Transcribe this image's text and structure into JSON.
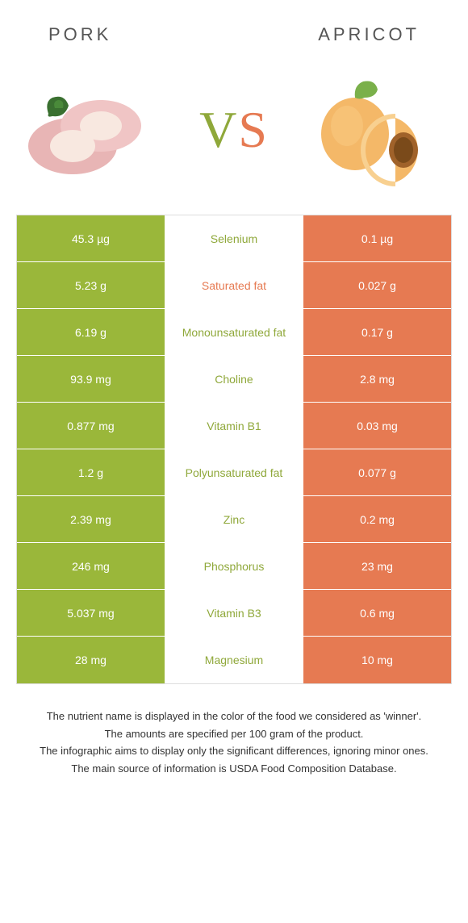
{
  "colors": {
    "left_bg": "#9ab73a",
    "right_bg": "#e67a52",
    "winner_left_text": "#8fa83a",
    "winner_right_text": "#e67a52",
    "row_border": "#ffffff"
  },
  "header": {
    "left_title": "Pork",
    "right_title": "Apricot"
  },
  "hero": {
    "vs_v": "V",
    "vs_s": "S",
    "left_alt": "pork",
    "right_alt": "apricot"
  },
  "rows": [
    {
      "nutrient": "Selenium",
      "left": "45.3 µg",
      "right": "0.1 µg",
      "winner": "left"
    },
    {
      "nutrient": "Saturated fat",
      "left": "5.23 g",
      "right": "0.027 g",
      "winner": "right"
    },
    {
      "nutrient": "Monounsaturated fat",
      "left": "6.19 g",
      "right": "0.17 g",
      "winner": "left"
    },
    {
      "nutrient": "Choline",
      "left": "93.9 mg",
      "right": "2.8 mg",
      "winner": "left"
    },
    {
      "nutrient": "Vitamin B1",
      "left": "0.877 mg",
      "right": "0.03 mg",
      "winner": "left"
    },
    {
      "nutrient": "Polyunsaturated fat",
      "left": "1.2 g",
      "right": "0.077 g",
      "winner": "left"
    },
    {
      "nutrient": "Zinc",
      "left": "2.39 mg",
      "right": "0.2 mg",
      "winner": "left"
    },
    {
      "nutrient": "Phosphorus",
      "left": "246 mg",
      "right": "23 mg",
      "winner": "left"
    },
    {
      "nutrient": "Vitamin B3",
      "left": "5.037 mg",
      "right": "0.6 mg",
      "winner": "left"
    },
    {
      "nutrient": "Magnesium",
      "left": "28 mg",
      "right": "10 mg",
      "winner": "left"
    }
  ],
  "notes": [
    "The nutrient name is displayed in the color of the food we considered as 'winner'.",
    "The amounts are specified per 100 gram of the product.",
    "The infographic aims to display only the significant differences, ignoring minor ones.",
    "The main source of information is USDA Food Composition Database."
  ]
}
